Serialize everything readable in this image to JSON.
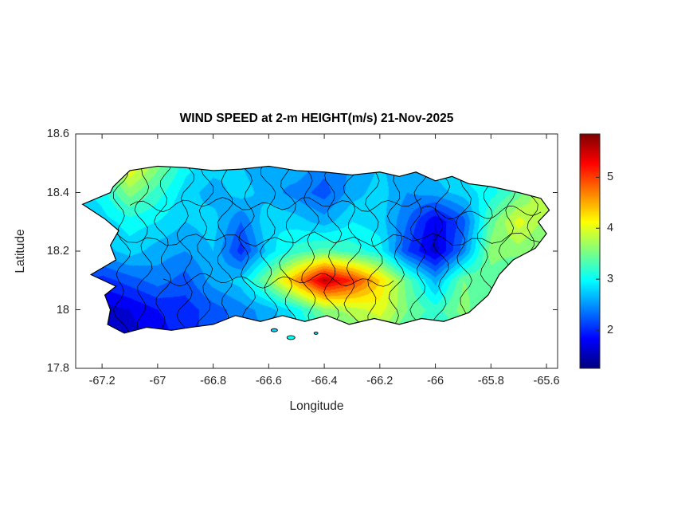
{
  "chart_data": {
    "type": "heatmap",
    "title": "WIND SPEED at 2-m HEIGHT(m/s) 21-Nov-2025",
    "xlabel": "Longitude",
    "ylabel": "Latitude",
    "units": "m/s",
    "xlim": [
      -67.295,
      -65.56
    ],
    "ylim": [
      17.8,
      18.6
    ],
    "x_tick_values": [
      -67.2,
      -67,
      -66.8,
      -66.6,
      -66.4,
      -66.2,
      -66,
      -65.8,
      -65.6
    ],
    "x_tick_labels": [
      "-67.2",
      "-67",
      "-66.8",
      "-66.6",
      "-66.4",
      "-66.2",
      "-66",
      "-65.8",
      "-65.6"
    ],
    "y_tick_values": [
      17.8,
      18,
      18.2,
      18.4,
      18.6
    ],
    "y_tick_labels": [
      "17.8",
      "18",
      "18.2",
      "18.4",
      "18.6"
    ],
    "colormap": "jet",
    "colorbar": {
      "min": 1.25,
      "max": 5.85,
      "tick_values": [
        2,
        3,
        4,
        5
      ],
      "tick_labels": [
        "2",
        "3",
        "4",
        "5"
      ]
    },
    "grid": {
      "lon": [
        -67.3,
        -67.2,
        -67.1,
        -67.0,
        -66.9,
        -66.8,
        -66.7,
        -66.6,
        -66.5,
        -66.4,
        -66.3,
        -66.2,
        -66.1,
        -66.0,
        -65.9,
        -65.8,
        -65.7,
        -65.6,
        -65.5
      ],
      "lat": [
        17.9,
        18.0,
        18.1,
        18.2,
        18.3,
        18.4,
        18.5
      ],
      "values": [
        [
          1.6,
          1.5,
          1.6,
          1.8,
          2.0,
          2.2,
          2.4,
          2.5,
          2.8,
          3.0,
          3.4,
          3.6,
          3.2,
          3.0,
          3.2,
          3.0,
          2.8,
          2.6,
          2.6
        ],
        [
          1.8,
          1.6,
          1.7,
          1.9,
          2.0,
          2.2,
          2.4,
          2.6,
          3.0,
          3.6,
          3.8,
          4.0,
          3.5,
          3.2,
          3.6,
          3.2,
          2.8,
          2.8,
          2.8
        ],
        [
          2.2,
          2.0,
          2.2,
          2.4,
          2.2,
          2.6,
          2.8,
          3.6,
          4.6,
          5.6,
          5.1,
          4.3,
          3.4,
          2.6,
          3.5,
          3.4,
          3.0,
          3.2,
          3.0
        ],
        [
          2.4,
          2.6,
          2.8,
          2.6,
          2.5,
          2.7,
          2.0,
          2.8,
          3.2,
          3.4,
          3.2,
          3.0,
          2.1,
          1.6,
          2.4,
          3.6,
          3.6,
          3.4,
          3.6
        ],
        [
          2.6,
          2.8,
          3.0,
          2.9,
          2.7,
          2.8,
          2.3,
          2.9,
          2.8,
          2.6,
          2.9,
          2.8,
          2.3,
          1.7,
          2.2,
          3.4,
          4.0,
          3.6,
          3.8
        ],
        [
          2.8,
          3.0,
          3.6,
          3.2,
          2.8,
          2.6,
          2.8,
          2.6,
          2.4,
          2.2,
          2.6,
          2.8,
          2.5,
          2.6,
          2.8,
          3.0,
          3.4,
          4.0,
          3.6
        ],
        [
          3.0,
          3.4,
          4.2,
          3.6,
          3.0,
          2.8,
          2.7,
          2.5,
          2.7,
          2.4,
          2.5,
          2.7,
          2.6,
          2.8,
          3.0,
          3.2,
          3.2,
          3.6,
          3.4
        ]
      ]
    },
    "island_outline": [
      [
        -67.16,
        18.42
      ],
      [
        -67.1,
        18.475
      ],
      [
        -67.0,
        18.49
      ],
      [
        -66.9,
        18.485
      ],
      [
        -66.8,
        18.475
      ],
      [
        -66.7,
        18.48
      ],
      [
        -66.6,
        18.49
      ],
      [
        -66.5,
        18.475
      ],
      [
        -66.4,
        18.47
      ],
      [
        -66.3,
        18.46
      ],
      [
        -66.2,
        18.47
      ],
      [
        -66.13,
        18.455
      ],
      [
        -66.07,
        18.47
      ],
      [
        -66.0,
        18.44
      ],
      [
        -65.94,
        18.455
      ],
      [
        -65.88,
        18.43
      ],
      [
        -65.8,
        18.42
      ],
      [
        -65.7,
        18.4
      ],
      [
        -65.62,
        18.38
      ],
      [
        -65.59,
        18.34
      ],
      [
        -65.63,
        18.3
      ],
      [
        -65.6,
        18.26
      ],
      [
        -65.64,
        18.21
      ],
      [
        -65.72,
        18.17
      ],
      [
        -65.77,
        18.12
      ],
      [
        -65.81,
        18.05
      ],
      [
        -65.88,
        17.99
      ],
      [
        -65.97,
        17.96
      ],
      [
        -66.05,
        17.97
      ],
      [
        -66.13,
        17.95
      ],
      [
        -66.22,
        17.97
      ],
      [
        -66.31,
        17.95
      ],
      [
        -66.39,
        17.98
      ],
      [
        -66.47,
        17.96
      ],
      [
        -66.55,
        17.98
      ],
      [
        -66.63,
        17.96
      ],
      [
        -66.72,
        17.98
      ],
      [
        -66.8,
        17.95
      ],
      [
        -66.88,
        17.94
      ],
      [
        -66.95,
        17.93
      ],
      [
        -67.04,
        17.94
      ],
      [
        -67.12,
        17.92
      ],
      [
        -67.18,
        17.95
      ],
      [
        -67.17,
        18.0
      ],
      [
        -67.19,
        18.05
      ],
      [
        -67.15,
        18.08
      ],
      [
        -67.24,
        18.12
      ],
      [
        -67.15,
        18.17
      ],
      [
        -67.17,
        18.22
      ],
      [
        -67.14,
        18.27
      ],
      [
        -67.19,
        18.31
      ],
      [
        -67.27,
        18.36
      ],
      [
        -67.17,
        18.4
      ]
    ],
    "islets": [
      {
        "lon": -66.58,
        "lat": 17.93,
        "value": 2.8,
        "rx": 4,
        "ry": 2
      },
      {
        "lon": -66.52,
        "lat": 17.905,
        "value": 3.0,
        "rx": 5,
        "ry": 2.5
      },
      {
        "lon": -66.43,
        "lat": 17.92,
        "value": 2.8,
        "rx": 2.5,
        "ry": 1.5
      }
    ],
    "municipal_boundaries": {
      "vertical_lon": [
        -67.13,
        -67.05,
        -66.98,
        -66.9,
        -66.83,
        -66.76,
        -66.68,
        -66.6,
        -66.53,
        -66.45,
        -66.37,
        -66.3,
        -66.22,
        -66.14,
        -66.06,
        -65.98,
        -65.9,
        -65.82,
        -65.74,
        -65.66
      ],
      "horizontal": [
        {
          "lat": 18.36,
          "lon_from": -67.1,
          "lon_to": -66.05
        },
        {
          "lat": 18.24,
          "lon_from": -67.18,
          "lon_to": -65.62
        },
        {
          "lat": 18.1,
          "lon_from": -66.98,
          "lon_to": -66.15
        },
        {
          "lat": 18.33,
          "lon_from": -66.05,
          "lon_to": -65.62
        }
      ]
    }
  },
  "colors": {
    "axis": "#262626",
    "title": "#000000",
    "boundary_lines": "#000000",
    "background": "#ffffff"
  }
}
